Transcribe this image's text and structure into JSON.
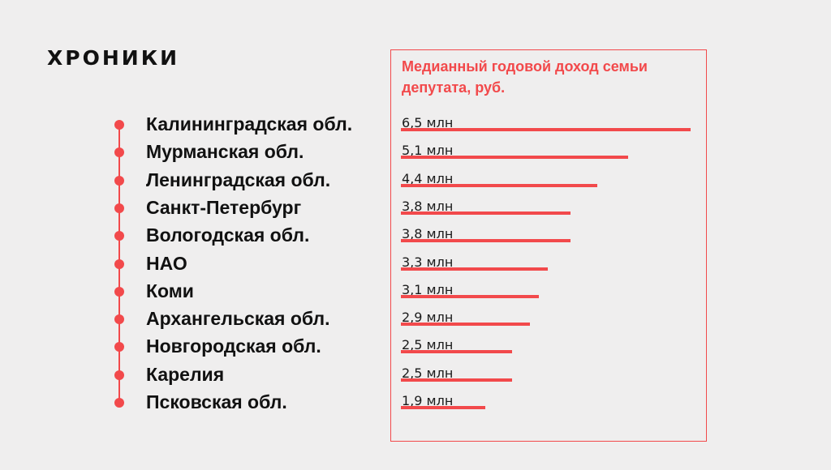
{
  "brand": {
    "name": "ХРОНИКИ"
  },
  "colors": {
    "accent": "#f2494b",
    "background": "#efeeee",
    "text": "#111111"
  },
  "chart_data": {
    "type": "bar",
    "orientation": "horizontal",
    "title": "Медианный годовой доход семьи депутата, руб.",
    "categories": [
      "Калининградская обл.",
      "Мурманская обл.",
      "Ленинградская обл.",
      "Санкт-Петербург",
      "Вологодская обл.",
      "НАО",
      "Коми",
      "Архангельская обл.",
      "Новгородская обл.",
      "Карелия",
      "Псковская обл."
    ],
    "values": [
      6.5,
      5.1,
      4.4,
      3.8,
      3.8,
      3.3,
      3.1,
      2.9,
      2.5,
      2.5,
      1.9
    ],
    "value_labels": [
      "6,5 млн",
      "5,1 млн",
      "4,4 млн",
      "3,8 млн",
      "3,8 млн",
      "3,3 млн",
      "3,1 млн",
      "2,9 млн",
      "2,5 млн",
      "2,5 млн",
      "1,9 млн"
    ],
    "unit": "млн руб.",
    "xlim": [
      0,
      6.5
    ]
  }
}
